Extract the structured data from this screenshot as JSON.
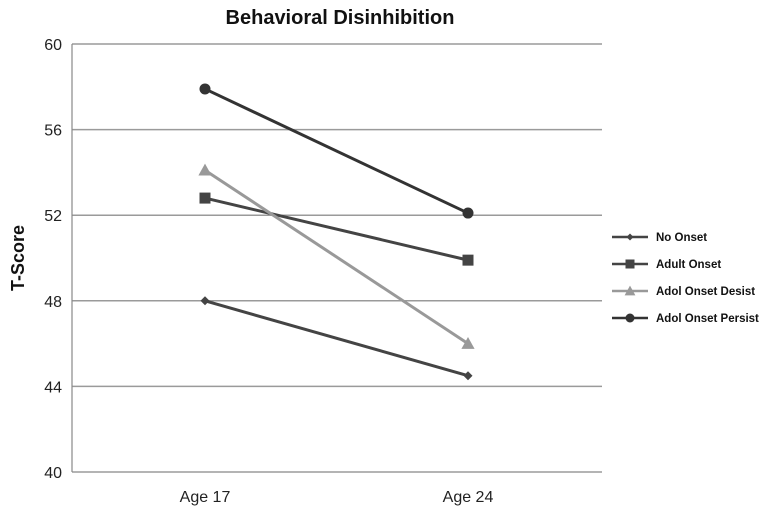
{
  "chart_data": {
    "type": "line",
    "title": "Behavioral Disinhibition",
    "xlabel": "",
    "ylabel": "T-Score",
    "categories": [
      "Age 17",
      "Age 24"
    ],
    "ylim": [
      40,
      60
    ],
    "yticks": [
      40,
      44,
      48,
      52,
      56,
      60
    ],
    "grid": true,
    "legend_position": "right",
    "series": [
      {
        "name": "No Onset",
        "values": [
          48.0,
          44.5
        ],
        "color": "#444444",
        "marker": "diamond"
      },
      {
        "name": "Adult Onset",
        "values": [
          52.8,
          49.9
        ],
        "color": "#444444",
        "marker": "square"
      },
      {
        "name": "Adol Onset Desist",
        "values": [
          54.1,
          46.0
        ],
        "color": "#999999",
        "marker": "triangle"
      },
      {
        "name": "Adol Onset Persist",
        "values": [
          57.9,
          52.1
        ],
        "color": "#333333",
        "marker": "circle"
      }
    ]
  }
}
